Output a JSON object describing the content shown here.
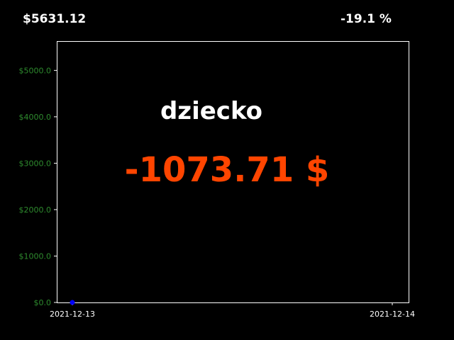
{
  "header": {
    "balance": "$5631.12",
    "change_percent": "-19.1 %"
  },
  "colors": {
    "background": "#000000",
    "frame": "#ffffff",
    "ytick": "#2e8b2e",
    "xtick": "#ffffff",
    "name": "#ffffff",
    "pnl": "#ff4500",
    "series": "#0000ff"
  },
  "chart_data": {
    "type": "line",
    "title": "",
    "xlabel": "",
    "ylabel": "",
    "xlim": [
      "2021-12-13",
      "2021-12-14"
    ],
    "ylim": [
      0,
      5631.12
    ],
    "x_ticks": [
      "2021-12-13",
      "2021-12-14"
    ],
    "y_ticks": [
      0,
      1000,
      2000,
      3000,
      4000,
      5000
    ],
    "y_tick_labels": [
      "$0.0",
      "$1000.0",
      "$2000.0",
      "$3000.0",
      "$4000.0",
      "$5000.0"
    ],
    "grid": false,
    "series": [
      {
        "x": [
          "2021-12-13"
        ],
        "y": [
          0
        ]
      }
    ],
    "annotations": {
      "name": "dziecko",
      "pnl": "-1073.71 $"
    }
  }
}
